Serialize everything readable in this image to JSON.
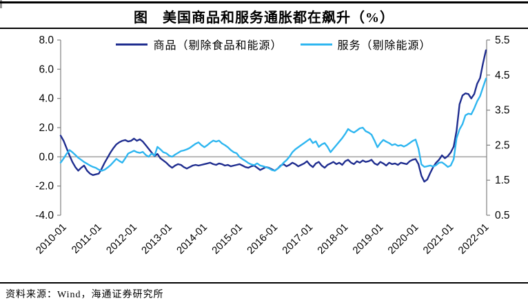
{
  "page": {
    "title": "图　美国商品和服务通胀都在飙升（%）",
    "source": "资料来源：Wind，海通证券研究所"
  },
  "colors": {
    "goods_line": "#1F2D8F",
    "services_line": "#2EB6F0",
    "axis_line": "#808080",
    "zero_line": "#A6A6A6",
    "text": "#000000",
    "rule": "#000000"
  },
  "chart_data": {
    "type": "line",
    "title": "美国商品和服务通胀都在飙升（%）",
    "x_frequency": "monthly",
    "x_start": "2010-01",
    "x_end": "2022-02",
    "x_tick_labels": [
      "2010-01",
      "2011-01",
      "2012-01",
      "2013-01",
      "2014-01",
      "2015-01",
      "2016-01",
      "2017-01",
      "2018-01",
      "2019-01",
      "2020-01",
      "2021-01",
      "2022-01"
    ],
    "left_axis": {
      "min": -4.0,
      "max": 8.0,
      "tick_interval": 2.0,
      "ticks": [
        "8.0",
        "6.0",
        "4.0",
        "2.0",
        "0.0",
        "-2.0",
        "-4.0"
      ]
    },
    "right_axis": {
      "min": 0.5,
      "max": 5.5,
      "tick_interval": 1.0,
      "ticks": [
        "5.5",
        "4.5",
        "3.5",
        "2.5",
        "1.5",
        "0.5"
      ]
    },
    "zero_gridline_left_value": 0.0,
    "grid": false,
    "legend_position": "top-center",
    "series": [
      {
        "name": "商品（剔除食品和能源）",
        "axis": "left",
        "color": "#1F2D8F",
        "values": [
          1.45,
          1.1,
          0.6,
          0.1,
          -0.35,
          -0.7,
          -0.95,
          -0.75,
          -0.6,
          -0.95,
          -1.15,
          -1.25,
          -1.2,
          -1.15,
          -0.8,
          -0.4,
          -0.05,
          0.3,
          0.6,
          0.85,
          1.0,
          1.1,
          1.15,
          1.05,
          1.1,
          1.25,
          1.1,
          1.2,
          1.05,
          0.8,
          0.55,
          0.3,
          0.05,
          0.2,
          -0.1,
          -0.25,
          -0.4,
          -0.6,
          -0.75,
          -0.6,
          -0.5,
          -0.55,
          -0.7,
          -0.8,
          -0.7,
          -0.6,
          -0.55,
          -0.6,
          -0.55,
          -0.5,
          -0.45,
          -0.4,
          -0.5,
          -0.55,
          -0.45,
          -0.5,
          -0.6,
          -0.55,
          -0.65,
          -0.6,
          -0.55,
          -0.5,
          -0.6,
          -0.7,
          -0.75,
          -0.65,
          -0.6,
          -0.75,
          -0.9,
          -0.8,
          -0.7,
          -0.75,
          -0.85,
          -0.95,
          -0.8,
          -0.6,
          -0.5,
          -0.65,
          -0.55,
          -0.4,
          -0.5,
          -0.65,
          -0.55,
          -0.45,
          -0.3,
          -0.55,
          -0.7,
          -0.45,
          -0.35,
          -0.6,
          -0.75,
          -0.55,
          -0.45,
          -0.35,
          -0.5,
          -0.4,
          -0.55,
          -0.3,
          -0.2,
          -0.4,
          -0.5,
          -0.3,
          -0.4,
          -0.25,
          -0.35,
          -0.3,
          -0.2,
          -0.45,
          -0.55,
          -0.35,
          -0.45,
          -0.6,
          -0.4,
          -0.5,
          -0.45,
          -0.55,
          -0.4,
          -0.45,
          -0.5,
          -0.3,
          -0.2,
          -0.15,
          -0.5,
          -1.3,
          -1.7,
          -1.55,
          -1.1,
          -0.7,
          -0.4,
          -0.2,
          0.1,
          -0.1,
          0.05,
          0.3,
          0.7,
          1.8,
          3.6,
          4.2,
          4.35,
          4.3,
          4.0,
          4.3,
          5.0,
          5.4,
          6.4,
          7.3
        ]
      },
      {
        "name": "服务（剔除能源）",
        "axis": "right",
        "color": "#2EB6F0",
        "values": [
          2.0,
          2.12,
          2.25,
          2.36,
          2.3,
          2.22,
          2.14,
          2.08,
          2.02,
          1.97,
          1.92,
          1.88,
          1.85,
          1.8,
          1.77,
          1.8,
          1.86,
          1.93,
          2.02,
          2.11,
          2.05,
          2.0,
          2.12,
          2.26,
          2.3,
          2.34,
          2.3,
          2.28,
          2.31,
          2.22,
          2.17,
          2.26,
          2.2,
          2.45,
          2.38,
          2.3,
          2.27,
          2.2,
          2.17,
          2.23,
          2.28,
          2.33,
          2.35,
          2.38,
          2.42,
          2.48,
          2.54,
          2.58,
          2.5,
          2.44,
          2.5,
          2.57,
          2.63,
          2.6,
          2.63,
          2.55,
          2.5,
          2.44,
          2.36,
          2.3,
          2.27,
          2.16,
          2.1,
          2.05,
          1.99,
          1.95,
          1.93,
          1.98,
          1.92,
          1.9,
          1.87,
          1.84,
          1.79,
          1.77,
          1.83,
          1.9,
          2.0,
          2.07,
          2.17,
          2.3,
          2.38,
          2.44,
          2.5,
          2.56,
          2.62,
          2.68,
          2.56,
          2.61,
          2.45,
          2.52,
          2.56,
          2.45,
          2.3,
          2.4,
          2.5,
          2.6,
          2.7,
          2.82,
          2.96,
          2.9,
          2.86,
          2.92,
          2.98,
          3.0,
          2.9,
          2.86,
          2.8,
          2.63,
          2.44,
          2.56,
          2.65,
          2.6,
          2.56,
          2.5,
          2.53,
          2.48,
          2.5,
          2.46,
          2.5,
          2.56,
          2.62,
          2.66,
          2.4,
          1.95,
          1.88,
          1.9,
          1.92,
          1.89,
          1.93,
          2.0,
          2.01,
          1.95,
          1.88,
          1.92,
          2.1,
          2.7,
          2.95,
          3.1,
          3.35,
          3.4,
          3.38,
          3.55,
          3.75,
          3.9,
          4.15,
          4.4
        ]
      }
    ]
  }
}
